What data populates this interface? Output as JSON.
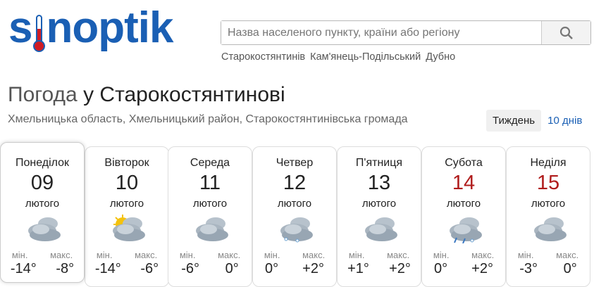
{
  "logo": "sinoptik",
  "search": {
    "placeholder": "Назва населеного пункту, країни або регіону"
  },
  "quick_links": [
    "Старокостянтинів",
    "Кам'янець-Подільський",
    "Дубно"
  ],
  "title": {
    "prefix": "Погода",
    "city": "у Старокостянтинові"
  },
  "region": "Хмельницька область, Хмельницький район, Старокостянтинівська громада",
  "tabs": [
    {
      "label": "Тиждень",
      "active": true
    },
    {
      "label": "10 днів",
      "active": false
    }
  ],
  "labels": {
    "min": "мін.",
    "max": "макс."
  },
  "days": [
    {
      "name": "Понеділок",
      "date": "09",
      "month": "лютого",
      "icon": "cloudy-icon",
      "min": "-14°",
      "max": "-8°",
      "weekend": false
    },
    {
      "name": "Вівторок",
      "date": "10",
      "month": "лютого",
      "icon": "partly-sunny-icon",
      "min": "-14°",
      "max": "-6°",
      "weekend": false
    },
    {
      "name": "Середа",
      "date": "11",
      "month": "лютого",
      "icon": "cloudy-icon",
      "min": "-6°",
      "max": "0°",
      "weekend": false
    },
    {
      "name": "Четвер",
      "date": "12",
      "month": "лютого",
      "icon": "cloudy-snow-icon",
      "min": "0°",
      "max": "+2°",
      "weekend": false
    },
    {
      "name": "П'ятниця",
      "date": "13",
      "month": "лютого",
      "icon": "cloudy-icon",
      "min": "+1°",
      "max": "+2°",
      "weekend": false
    },
    {
      "name": "Субота",
      "date": "14",
      "month": "лютого",
      "icon": "cloudy-rain-snow-icon",
      "min": "0°",
      "max": "+2°",
      "weekend": true
    },
    {
      "name": "Неділя",
      "date": "15",
      "month": "лютого",
      "icon": "cloudy-icon",
      "min": "-3°",
      "max": "0°",
      "weekend": true
    }
  ],
  "colors": {
    "brand": "#1a5fb4",
    "weekend": "#b01c1c"
  }
}
